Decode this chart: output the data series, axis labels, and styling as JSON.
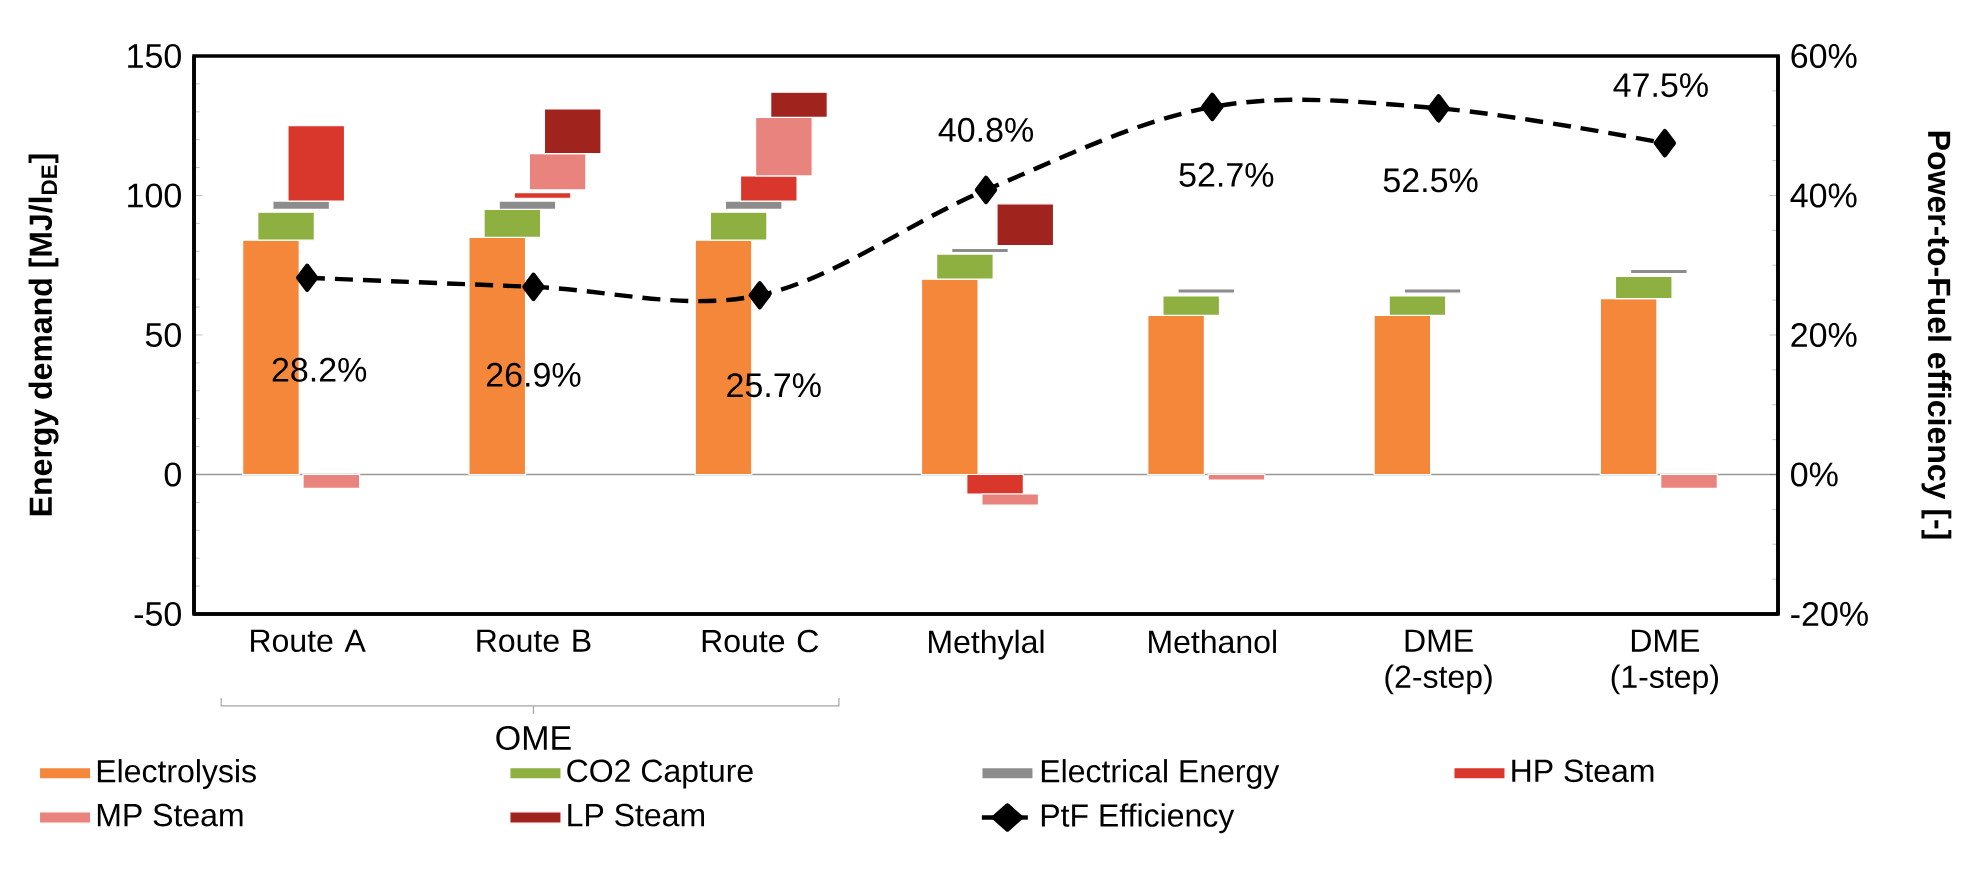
{
  "chart_data": {
    "type": "bar",
    "ylabel": "Energy demand [MJ/l$_{DE}$]",
    "y2label": "Power-to-Fuel efficiency [-]",
    "categories": [
      "Route A",
      "Route B",
      "Route C",
      "Methylal",
      "Methanol",
      "DME (2-step)",
      "DME (1-step)"
    ],
    "annotations": [
      "OME"
    ],
    "ylim": [
      -50,
      150
    ],
    "yticks": [
      -50,
      0,
      50,
      100,
      150
    ],
    "y2lim": [
      -20,
      60
    ],
    "y2ticks": [
      {
        "value": -20,
        "label": "-20%"
      },
      {
        "value": 0,
        "label": "0%"
      },
      {
        "value": 20,
        "label": "20%"
      },
      {
        "value": 40,
        "label": "40%"
      },
      {
        "value": 60,
        "label": "60%"
      }
    ],
    "legend": "bottom",
    "series": [
      {
        "name": "Electrolysis",
        "color": "#f4873a",
        "values": [
          84,
          85,
          84,
          70,
          57,
          57,
          63
        ],
        "base": [
          0,
          0,
          0,
          0,
          0,
          0,
          0
        ]
      },
      {
        "name": "CO2 Capture",
        "color": "#8db040",
        "values": [
          10,
          10,
          10,
          9,
          7,
          7,
          8
        ],
        "base": [
          84,
          85,
          84,
          70,
          57,
          57,
          63
        ]
      },
      {
        "name": "Electrical Energy",
        "color": "#8c8c8c",
        "values": [
          3,
          3,
          3,
          1.5,
          1.5,
          1.5,
          1.5
        ],
        "base": [
          95,
          95,
          95,
          79.5,
          65,
          65,
          72
        ]
      },
      {
        "name": "HP Steam",
        "color": "#d9372b",
        "values": [
          27,
          2,
          9,
          -7,
          null,
          null,
          null
        ],
        "base": [
          98,
          99,
          98,
          0,
          null,
          null,
          null
        ]
      },
      {
        "name": "MP Steam",
        "color": "#e8837d",
        "values": [
          -5,
          13,
          21,
          -4,
          -2,
          null,
          -5
        ],
        "base": [
          0,
          102,
          107,
          -7,
          0,
          null,
          0
        ]
      },
      {
        "name": "LP Steam",
        "color": "#a0231e",
        "values": [
          null,
          16,
          9,
          15,
          null,
          null,
          null
        ],
        "base": [
          null,
          115,
          128,
          82,
          null,
          null,
          null
        ]
      },
      {
        "name": "PtF Efficiency",
        "type": "line",
        "axis": "y2",
        "color": "#000000",
        "marker": "diamond",
        "line_style": "dashed",
        "values": [
          28.2,
          26.9,
          25.7,
          40.8,
          52.7,
          52.5,
          47.5
        ],
        "value_labels": [
          "28.2%",
          "26.9%",
          "25.7%",
          "40.8%",
          "52.7%",
          "52.5%",
          "47.5%"
        ]
      }
    ]
  }
}
